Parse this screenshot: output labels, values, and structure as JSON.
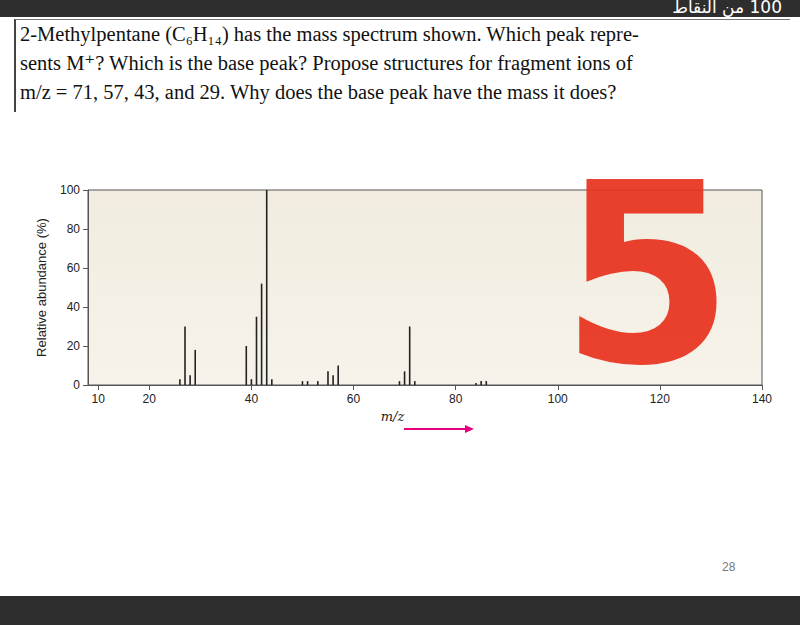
{
  "document": {
    "corner_text": "100 من النقاط",
    "question_lines": [
      "2-Methylpentane (C₆H₁₄) has the mass spectrum shown. Which peak repre-",
      "sents M⁺? Which is the base peak? Propose structures for fragment ions of",
      "m/z = 71, 57, 43, and 29. Why does the base peak have the mass it does?"
    ],
    "annotation": "5",
    "page_number": "28"
  },
  "chart_data": {
    "type": "bar",
    "xlabel": "m/z",
    "ylabel": "Relative abundance (%)",
    "x": [
      26,
      27,
      28,
      29,
      39,
      40,
      41,
      42,
      43,
      44,
      50,
      51,
      53,
      55,
      56,
      57,
      69,
      70,
      71,
      72,
      84,
      85,
      86
    ],
    "values": [
      3,
      30,
      5,
      18,
      20,
      3,
      35,
      52,
      100,
      3,
      2,
      2,
      2,
      7,
      5,
      10,
      2,
      7,
      30,
      2,
      1,
      2,
      2
    ],
    "color": "#222222",
    "xlim": [
      8,
      140
    ],
    "xticks": [
      10,
      20,
      40,
      60,
      80,
      100,
      120,
      140
    ],
    "ylim": [
      0,
      100
    ],
    "yticks": [
      0,
      20,
      40,
      60,
      80,
      100
    ],
    "grid": false
  }
}
